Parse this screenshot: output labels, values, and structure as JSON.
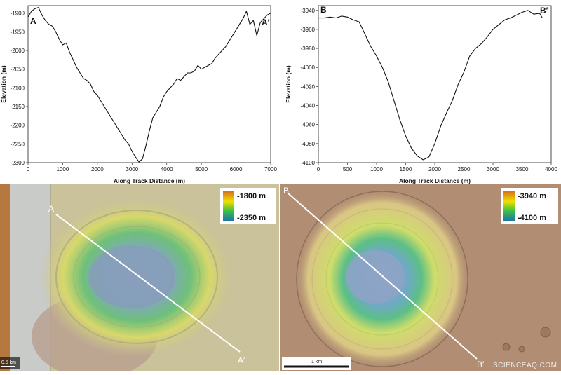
{
  "chart_data": [
    {
      "type": "line",
      "title": "",
      "xlabel": "Along Track Distance (m)",
      "ylabel": "Elevation (m)",
      "xlim": [
        0,
        7000
      ],
      "ylim": [
        -2300,
        -1880
      ],
      "xticks": [
        0,
        1000,
        2000,
        3000,
        4000,
        5000,
        6000,
        7000
      ],
      "yticks": [
        -1900,
        -1950,
        -2000,
        -2050,
        -2100,
        -2150,
        -2200,
        -2250,
        -2300
      ],
      "start_label": "A",
      "end_label": "A′",
      "series": [
        {
          "x": [
            0,
            100,
            200,
            300,
            400,
            500,
            600,
            700,
            800,
            900,
            1000,
            1100,
            1200,
            1300,
            1400,
            1500,
            1600,
            1700,
            1800,
            1900,
            2000,
            2100,
            2200,
            2300,
            2400,
            2500,
            2600,
            2700,
            2800,
            2900,
            3000,
            3100,
            3200,
            3300,
            3400,
            3500,
            3600,
            3700,
            3800,
            3900,
            4000,
            4100,
            4200,
            4300,
            4400,
            4500,
            4600,
            4700,
            4800,
            4900,
            5000,
            5100,
            5200,
            5300,
            5400,
            5500,
            5600,
            5700,
            5800,
            5900,
            6000,
            6100,
            6200,
            6300,
            6400,
            6500,
            6600,
            6700,
            6800,
            6900,
            7000
          ],
          "y": [
            -1910,
            -1895,
            -1888,
            -1885,
            -1905,
            -1920,
            -1930,
            -1935,
            -1950,
            -1970,
            -1985,
            -1980,
            -2005,
            -2025,
            -2045,
            -2060,
            -2075,
            -2080,
            -2090,
            -2110,
            -2120,
            -2135,
            -2150,
            -2165,
            -2180,
            -2195,
            -2210,
            -2225,
            -2240,
            -2250,
            -2270,
            -2285,
            -2298,
            -2290,
            -2255,
            -2215,
            -2180,
            -2165,
            -2150,
            -2125,
            -2110,
            -2100,
            -2090,
            -2075,
            -2080,
            -2070,
            -2060,
            -2060,
            -2055,
            -2040,
            -2050,
            -2045,
            -2040,
            -2035,
            -2020,
            -2010,
            -2000,
            -1990,
            -1975,
            -1960,
            -1945,
            -1930,
            -1915,
            -1895,
            -1930,
            -1920,
            -1960,
            -1925,
            -1915,
            -1905,
            -1900
          ]
        }
      ]
    },
    {
      "type": "line",
      "title": "",
      "xlabel": "Along Track Distance (m)",
      "ylabel": "Elevation (m)",
      "xlim": [
        0,
        4000
      ],
      "ylim": [
        -4100,
        -3935
      ],
      "xticks": [
        0,
        500,
        1000,
        1500,
        2000,
        2500,
        3000,
        3500,
        4000
      ],
      "yticks": [
        -3940,
        -3960,
        -3980,
        -4000,
        -4020,
        -4040,
        -4060,
        -4080,
        -4100
      ],
      "start_label": "B",
      "end_label": "B′",
      "series": [
        {
          "x": [
            0,
            100,
            200,
            300,
            400,
            500,
            600,
            700,
            800,
            900,
            1000,
            1100,
            1200,
            1300,
            1400,
            1500,
            1600,
            1700,
            1800,
            1900,
            2000,
            2100,
            2200,
            2300,
            2400,
            2500,
            2600,
            2700,
            2800,
            2900,
            3000,
            3100,
            3200,
            3300,
            3400,
            3500,
            3600,
            3700,
            3800,
            3850
          ],
          "y": [
            -3948,
            -3948,
            -3947,
            -3948,
            -3946,
            -3947,
            -3950,
            -3952,
            -3965,
            -3978,
            -3988,
            -4000,
            -4015,
            -4035,
            -4055,
            -4072,
            -4085,
            -4093,
            -4097,
            -4094,
            -4080,
            -4062,
            -4048,
            -4035,
            -4018,
            -4005,
            -3988,
            -3980,
            -3975,
            -3968,
            -3960,
            -3955,
            -3950,
            -3948,
            -3945,
            -3942,
            -3940,
            -3944,
            -3943,
            -3948
          ]
        }
      ]
    }
  ],
  "maps": [
    {
      "start_label": "A",
      "end_label": "A′",
      "legend_top": "-1800 m",
      "legend_bottom": "-2350 m",
      "scale_label": "0.5 km"
    },
    {
      "start_label": "B",
      "end_label": "B′",
      "legend_top": "-3940 m",
      "legend_bottom": "-4100 m",
      "scale_label": "1 km"
    }
  ],
  "watermark": "SCIENCEAQ.COM",
  "colors": {
    "map_left_terrain": "#c9c29a",
    "map_right_terrain": "#b08d73",
    "legend_high": "#d2691e",
    "legend_mid": "#f0e000",
    "legend_low": "#1a6fb5"
  }
}
